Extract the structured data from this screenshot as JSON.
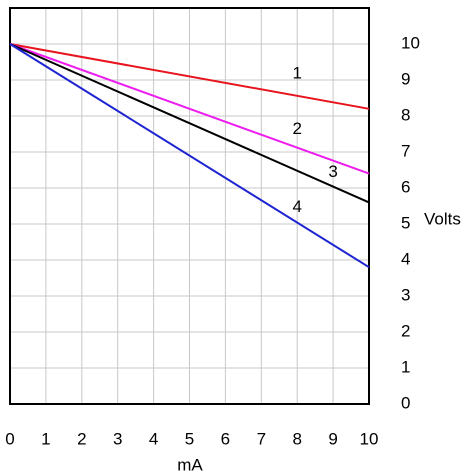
{
  "chart_data": {
    "type": "line",
    "x_label": "mA",
    "y_label": "Volts",
    "x": [
      0,
      10
    ],
    "series": [
      {
        "name": "1",
        "color": "#e8141e",
        "values": [
          10,
          8.2
        ]
      },
      {
        "name": "2",
        "color": "#ee1cee",
        "values": [
          10,
          6.4
        ]
      },
      {
        "name": "3",
        "color": "#000000",
        "values": [
          10,
          5.6
        ]
      },
      {
        "name": "4",
        "color": "#1e24d2",
        "values": [
          10,
          3.8
        ]
      }
    ],
    "xlim": [
      0,
      10
    ],
    "xticks": [
      0,
      1,
      2,
      3,
      4,
      5,
      6,
      7,
      8,
      9,
      10
    ],
    "ylim": [
      0,
      11
    ],
    "yticks": [
      0,
      1,
      2,
      3,
      4,
      5,
      6,
      7,
      8,
      9,
      10
    ],
    "grid": true
  }
}
